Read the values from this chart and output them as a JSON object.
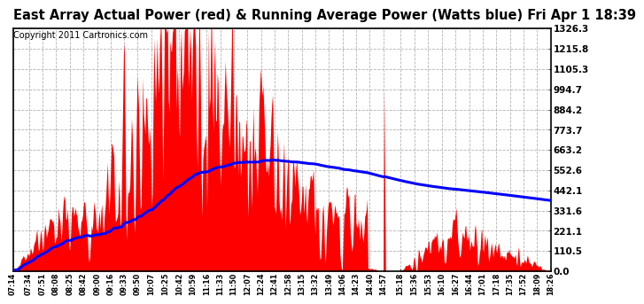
{
  "title": "East Array Actual Power (red) & Running Average Power (Watts blue) Fri Apr 1 18:39",
  "copyright": "Copyright 2011 Cartronics.com",
  "ymax": 1326.3,
  "ymin": 0.0,
  "yticks": [
    0.0,
    110.5,
    221.1,
    331.6,
    442.1,
    552.6,
    663.2,
    773.7,
    884.2,
    994.7,
    1105.3,
    1215.8,
    1326.3
  ],
  "xtick_labels": [
    "07:14",
    "07:34",
    "07:51",
    "08:08",
    "08:25",
    "08:42",
    "09:00",
    "09:16",
    "09:33",
    "09:50",
    "10:07",
    "10:25",
    "10:42",
    "10:59",
    "11:16",
    "11:33",
    "11:50",
    "12:07",
    "12:24",
    "12:41",
    "12:58",
    "13:15",
    "13:32",
    "13:49",
    "14:06",
    "14:23",
    "14:40",
    "14:57",
    "15:18",
    "15:36",
    "15:53",
    "16:10",
    "16:27",
    "16:44",
    "17:01",
    "17:18",
    "17:35",
    "17:52",
    "18:09",
    "18:26"
  ],
  "bg_color": "#ffffff",
  "area_color": "#ff0000",
  "avg_color": "#0000ff",
  "grid_color": "#aaaaaa",
  "title_fontsize": 10.5,
  "copyright_fontsize": 7,
  "avg_linewidth": 2.2
}
